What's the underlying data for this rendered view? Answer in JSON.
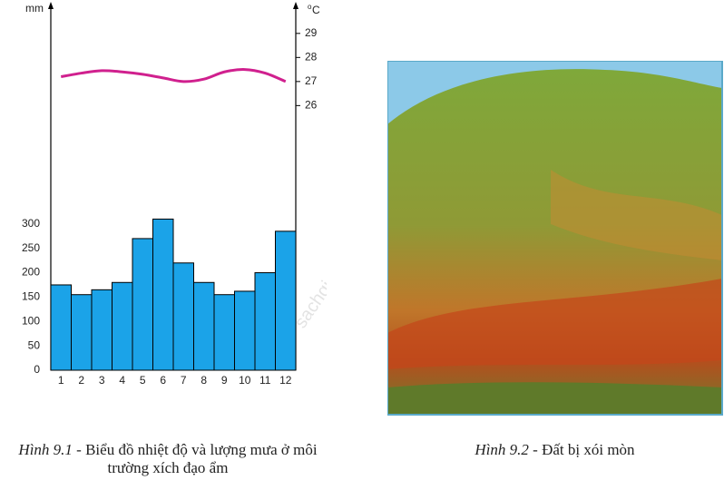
{
  "chart_data": {
    "type": "bar",
    "y_unit": "mm",
    "y2_unit": "C",
    "y2_unit_degree": "o",
    "categories": [
      "1",
      "2",
      "3",
      "4",
      "5",
      "6",
      "7",
      "8",
      "9",
      "10",
      "11",
      "12"
    ],
    "series": [
      {
        "type": "bar",
        "color": "#1ba3e8",
        "values": [
          175,
          155,
          165,
          180,
          270,
          310,
          220,
          180,
          155,
          162,
          200,
          285
        ]
      },
      {
        "type": "line",
        "axis": "y2",
        "color": "#d0208e",
        "values": [
          27.2,
          27.35,
          27.45,
          27.4,
          27.3,
          27.15,
          27.0,
          27.1,
          27.4,
          27.5,
          27.35,
          27.0
        ]
      }
    ],
    "ylim": [
      0,
      750
    ],
    "yticks": [
      0,
      50,
      100,
      150,
      200,
      250,
      300
    ],
    "y2lim": [
      15,
      30.2
    ],
    "y2ticks": [
      26,
      27,
      28,
      29
    ]
  },
  "watermark": "sachgiaokhoa",
  "captions": [
    {
      "label": "Hình 9.1",
      "text": " - Biểu đồ nhiệt độ và lượng mưa ở môi trường xích đạo ẩm"
    },
    {
      "label": "Hình 9.2",
      "text": " - Đất bị xói mòn"
    }
  ]
}
